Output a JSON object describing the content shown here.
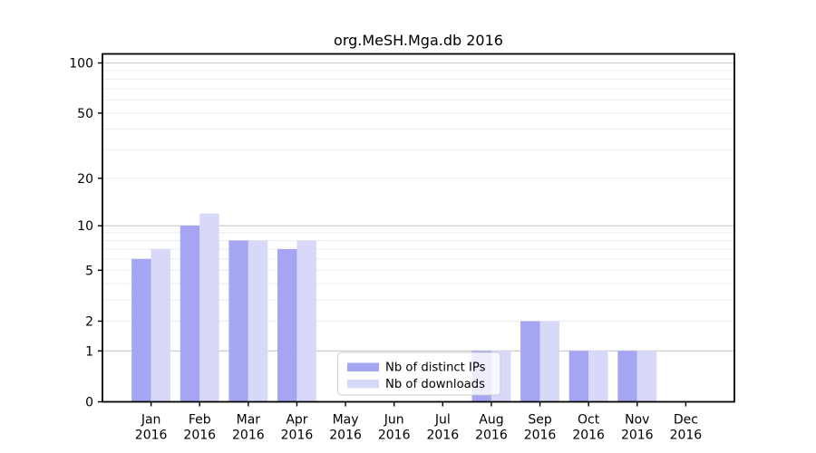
{
  "chart_data": {
    "type": "bar",
    "title": "org.MeSH.Mga.db 2016",
    "categories": [
      "Jan",
      "Feb",
      "Mar",
      "Apr",
      "May",
      "Jun",
      "Jul",
      "Aug",
      "Sep",
      "Oct",
      "Nov",
      "Dec"
    ],
    "category_year": "2016",
    "series": [
      {
        "name": "Nb of distinct IPs",
        "color": "#a5a5f3",
        "values": [
          6,
          10,
          8,
          7,
          0,
          0,
          0,
          1,
          2,
          1,
          1,
          0
        ]
      },
      {
        "name": "Nb of downloads",
        "color": "#d8d8f9",
        "values": [
          7,
          12,
          8,
          8,
          0,
          0,
          0,
          1,
          2,
          1,
          1,
          0
        ]
      }
    ],
    "xlabel": "",
    "ylabel": "",
    "y_scale": "log1p",
    "ylim": [
      0,
      113
    ],
    "y_ticks": [
      0,
      1,
      2,
      5,
      10,
      20,
      50,
      100
    ],
    "y_major_gridlines": [
      1,
      10,
      100
    ],
    "y_minor_gridlines": [
      2,
      3,
      4,
      5,
      6,
      7,
      8,
      9,
      20,
      30,
      40,
      50,
      60,
      70,
      80,
      90
    ],
    "grid": true,
    "legend_position": "lower-center-left-inside",
    "colors": {
      "major_grid": "#c8c8c8",
      "minor_grid": "#ececec",
      "axis": "#000000",
      "legend_border": "#cccccc",
      "legend_background": "rgba(255,255,255,0.8)",
      "background": "#ffffff"
    }
  }
}
